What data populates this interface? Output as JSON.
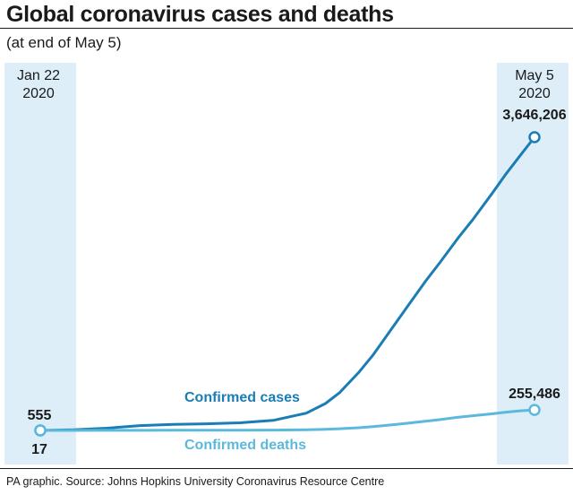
{
  "header": {
    "title": "Global coronavirus cases and deaths",
    "subtitle": "(at end of May 5)"
  },
  "footer": {
    "source": "PA graphic. Source: Johns Hopkins University Coronavirus Resource Centre"
  },
  "chart_data": {
    "type": "line",
    "x_start_label": [
      "Jan 22",
      "2020"
    ],
    "x_end_label": [
      "May 5",
      "2020"
    ],
    "x": [
      "2020-01-22",
      "2020-01-29",
      "2020-02-05",
      "2020-02-12",
      "2020-02-19",
      "2020-02-26",
      "2020-03-04",
      "2020-03-11",
      "2020-03-18",
      "2020-03-22",
      "2020-03-25",
      "2020-03-29",
      "2020-04-01",
      "2020-04-05",
      "2020-04-08",
      "2020-04-12",
      "2020-04-15",
      "2020-04-19",
      "2020-04-22",
      "2020-04-26",
      "2020-04-29",
      "2020-05-02",
      "2020-05-05"
    ],
    "series": [
      {
        "name": "Confirmed cases",
        "color": "#1a7db5",
        "values": [
          555,
          7800,
          28000,
          60000,
          76000,
          82000,
          95000,
          125000,
          215000,
          335000,
          470000,
          720000,
          935000,
          1270000,
          1520000,
          1850000,
          2080000,
          2400000,
          2620000,
          2940000,
          3190000,
          3420000,
          3646206
        ],
        "start_label": "555",
        "end_label": "3,646,206"
      },
      {
        "name": "Confirmed deaths",
        "color": "#5bb9dd",
        "values": [
          17,
          170,
          560,
          1370,
          2130,
          2800,
          3300,
          4600,
          8800,
          15000,
          21000,
          34000,
          47000,
          69000,
          88000,
          114000,
          134000,
          165000,
          183000,
          206000,
          228000,
          244000,
          255486
        ],
        "start_label": "17",
        "end_label": "255,486"
      }
    ],
    "ylim": [
      0,
      3900000
    ],
    "grid": false,
    "band_color": "#ddeef9"
  }
}
